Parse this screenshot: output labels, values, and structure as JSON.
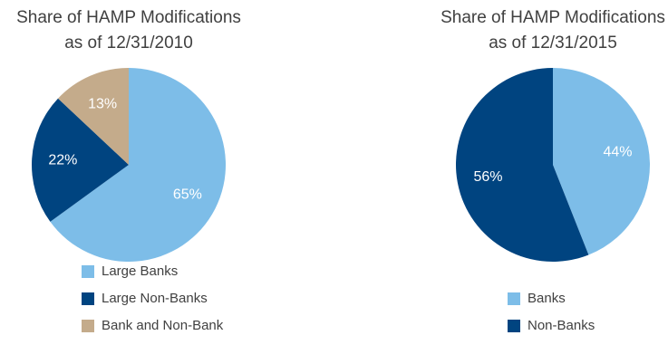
{
  "chart_data": [
    {
      "type": "pie",
      "title": [
        "Share of HAMP Modifications",
        "as of 12/31/2010"
      ],
      "categories": [
        "Large Banks",
        "Large Non-Banks",
        "Bank and Non-Bank"
      ],
      "values": [
        65,
        22,
        13
      ],
      "value_labels": [
        "65%",
        "22%",
        "13%"
      ],
      "colors": [
        "#7dbde8",
        "#004480",
        "#c4ab8b"
      ]
    },
    {
      "type": "pie",
      "title": [
        "Share of HAMP Modifications",
        "as of 12/31/2015"
      ],
      "categories": [
        "Banks",
        "Non-Banks"
      ],
      "values": [
        44,
        56
      ],
      "value_labels": [
        "44%",
        "56%"
      ],
      "colors": [
        "#7dbde8",
        "#004480"
      ]
    }
  ]
}
